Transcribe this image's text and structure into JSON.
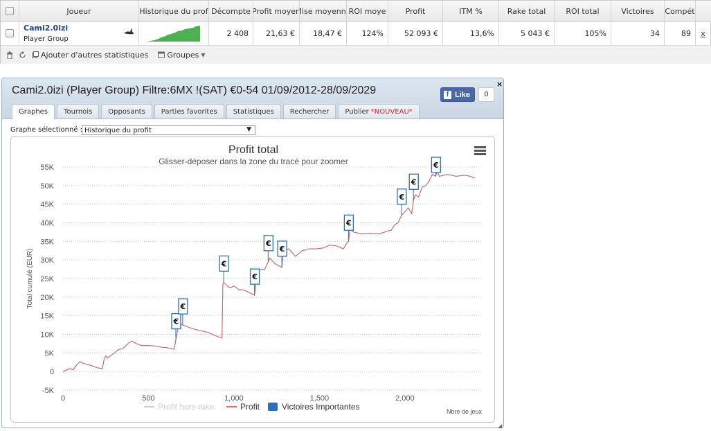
{
  "table": {
    "headers": [
      "Joueur",
      "Historique du prof",
      "Décompte",
      "Profit moyen",
      "Mise moyenne",
      "ROI moye",
      "Profit",
      "ITM %",
      "Rake total",
      "ROI total",
      "Victoires",
      "Compét"
    ],
    "player": {
      "name": "Cami2.0izi",
      "group": "Player Group",
      "count": "2 408",
      "avg_profit": "21,63 €",
      "avg_stake": "18,47 €",
      "avg_roi": "124%",
      "profit": "52 093 €",
      "itm": "13,6%",
      "rake_total": "5 043 €",
      "roi_total": "105%",
      "wins": "34",
      "comp": "89",
      "remove": "x"
    },
    "sparkline_color": "#4caf50"
  },
  "toolbar": {
    "add_stats": "Ajouter d'autres statistiques",
    "groups": "Groupes"
  },
  "panel": {
    "title": "Cami2.0izi (Player Group) Filtre:6MX !(SAT) €0-54 01/09/2012-28/09/2029",
    "fb_like": "Like",
    "fb_count": "0",
    "close": "×",
    "tabs": [
      "Graphes",
      "Tournois",
      "Opposants",
      "Parties favorites",
      "Statistiques",
      "Rechercher",
      "Publier"
    ],
    "new_badge": "*NOUVEAU*",
    "graph_label": "Graphe sélectionné :",
    "graph_selected": "Historique du profit"
  },
  "chart_data": {
    "type": "line",
    "title": "Profit total",
    "subtitle": "Glisser-déposer dans la zone du tracé pour zoomer",
    "ylabel": "Total cumulé (EUR)",
    "xlabel": "Nbre de jeux",
    "ylim": [
      -5000,
      55000
    ],
    "xlim": [
      0,
      2450
    ],
    "yticks": [
      "55K",
      "50K",
      "45K",
      "40K",
      "35K",
      "30K",
      "25K",
      "20K",
      "15K",
      "10K",
      "5K",
      "0",
      "-5K"
    ],
    "xticks": [
      "0",
      "500",
      "1,000",
      "1,500",
      "2,000"
    ],
    "legend": [
      "Profit hors rake",
      "Profit",
      "Victoires Importantes"
    ],
    "colors": {
      "profit": "#c96b6b",
      "flag": "#2a6ec4",
      "legend_grey": "#cccccc"
    },
    "series": [
      {
        "name": "Profit",
        "x": [
          0,
          40,
          60,
          80,
          100,
          120,
          150,
          180,
          200,
          230,
          240,
          250,
          260,
          300,
          320,
          350,
          380,
          400,
          430,
          460,
          500,
          550,
          580,
          600,
          630,
          650,
          660,
          670,
          680,
          700,
          730,
          760,
          800,
          850,
          900,
          930,
          935,
          940,
          960,
          980,
          1000,
          1030,
          1050,
          1080,
          1100,
          1120,
          1130,
          1140,
          1160,
          1180,
          1200,
          1210,
          1220,
          1240,
          1260,
          1280,
          1290,
          1300,
          1320,
          1340,
          1360,
          1400,
          1440,
          1480,
          1520,
          1560,
          1600,
          1640,
          1660,
          1670,
          1680,
          1700,
          1750,
          1800,
          1850,
          1900,
          1920,
          1940,
          1960,
          1980,
          2000,
          2020,
          2040,
          2050,
          2060,
          2080,
          2100,
          2120,
          2140,
          2160,
          2180,
          2190,
          2200,
          2250,
          2300,
          2350,
          2380,
          2410
        ],
        "y": [
          0,
          800,
          500,
          1800,
          2700,
          2200,
          1800,
          1400,
          1000,
          800,
          3200,
          4200,
          3600,
          5000,
          5800,
          6200,
          7500,
          8200,
          7500,
          7000,
          7000,
          6800,
          6500,
          6500,
          6200,
          6000,
          8500,
          11000,
          13000,
          12500,
          12000,
          11500,
          11000,
          10500,
          9500,
          9000,
          23500,
          24000,
          23000,
          22500,
          23000,
          22000,
          22000,
          21500,
          21000,
          20500,
          24000,
          27000,
          27500,
          27500,
          29500,
          30500,
          30000,
          29000,
          28500,
          28000,
          33500,
          32500,
          33000,
          32000,
          31000,
          32500,
          33000,
          33000,
          33200,
          34000,
          33800,
          33000,
          34500,
          35000,
          38500,
          37500,
          37000,
          37200,
          37000,
          37800,
          38000,
          39500,
          40000,
          42000,
          43000,
          44000,
          42500,
          46000,
          47500,
          47000,
          49500,
          50000,
          51000,
          53000,
          52500,
          54000,
          52500,
          53000,
          52500,
          52800,
          52500,
          52000
        ]
      }
    ],
    "important_wins_x": [
      660,
      700,
      940,
      1120,
      1200,
      1280,
      1670,
      1980,
      2050,
      2180
    ]
  }
}
